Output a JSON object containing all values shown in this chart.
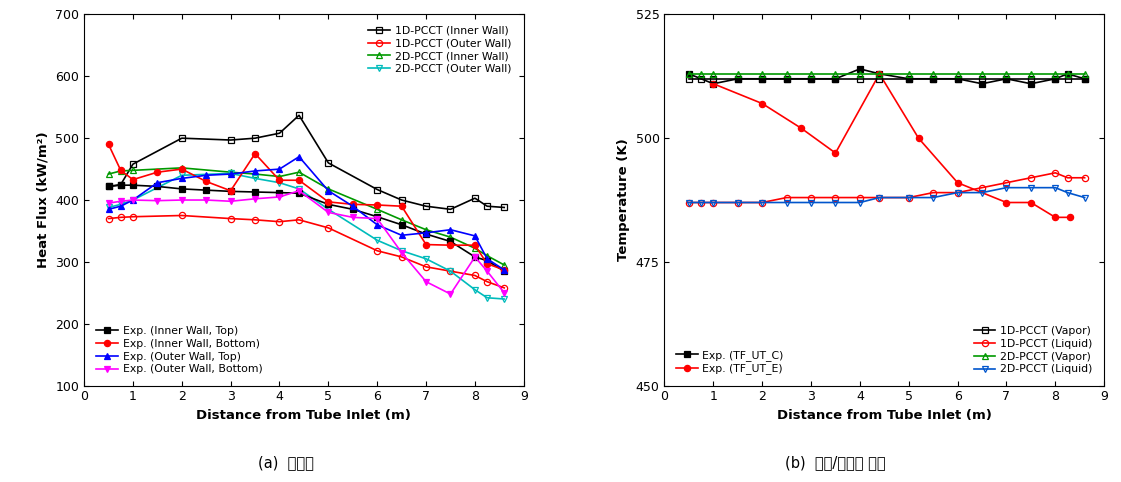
{
  "left": {
    "xlabel": "Distance from Tube Inlet (m)",
    "ylabel": "Heat Flux (kW/m²)",
    "xlim": [
      0,
      9
    ],
    "ylim": [
      100,
      700
    ],
    "yticks": [
      100,
      200,
      300,
      400,
      500,
      600,
      700
    ],
    "xticks": [
      0,
      1,
      2,
      3,
      4,
      5,
      6,
      7,
      8,
      9
    ],
    "pcct1d_inner": {
      "x": [
        0.5,
        0.75,
        1.0,
        2.0,
        3.0,
        3.5,
        4.0,
        4.4,
        5.0,
        6.0,
        6.5,
        7.0,
        7.5,
        8.0,
        8.25,
        8.6
      ],
      "y": [
        422,
        425,
        458,
        500,
        497,
        500,
        508,
        537,
        460,
        417,
        400,
        390,
        385,
        403,
        390,
        388
      ],
      "color": "#000000",
      "marker": "s",
      "label": "1D-PCCT (Inner Wall)"
    },
    "pcct1d_outer": {
      "x": [
        0.5,
        0.75,
        1.0,
        2.0,
        3.0,
        3.5,
        4.0,
        4.4,
        5.0,
        6.0,
        6.5,
        7.0,
        7.5,
        8.0,
        8.25,
        8.6
      ],
      "y": [
        370,
        372,
        373,
        375,
        370,
        368,
        365,
        368,
        355,
        318,
        308,
        292,
        285,
        278,
        268,
        258
      ],
      "color": "#ff0000",
      "marker": "o",
      "label": "1D-PCCT (Outer Wall)"
    },
    "pcct2d_inner": {
      "x": [
        0.5,
        0.75,
        1.0,
        2.0,
        3.0,
        3.5,
        4.0,
        4.4,
        5.0,
        6.0,
        6.5,
        7.0,
        7.5,
        8.0,
        8.25,
        8.6
      ],
      "y": [
        442,
        447,
        448,
        452,
        445,
        442,
        438,
        445,
        418,
        385,
        368,
        352,
        340,
        322,
        310,
        295
      ],
      "color": "#009900",
      "marker": "^",
      "label": "2D-PCCT (Inner Wall)"
    },
    "pcct2d_outer": {
      "x": [
        0.5,
        0.75,
        1.0,
        2.0,
        3.0,
        3.5,
        4.0,
        4.4,
        5.0,
        6.0,
        6.5,
        7.0,
        7.5,
        8.0,
        8.25,
        8.6
      ],
      "y": [
        388,
        393,
        400,
        440,
        443,
        435,
        428,
        418,
        385,
        335,
        318,
        305,
        285,
        255,
        242,
        240
      ],
      "color": "#00bbbb",
      "marker": "v",
      "label": "2D-PCCT (Outer Wall)"
    },
    "exp_inner_top": {
      "x": [
        0.5,
        0.75,
        1.0,
        1.5,
        2.0,
        2.5,
        3.0,
        3.5,
        4.0,
        4.4,
        5.0,
        5.5,
        6.0,
        6.5,
        7.0,
        7.5,
        8.0,
        8.25,
        8.6
      ],
      "y": [
        422,
        424,
        424,
        422,
        418,
        416,
        414,
        413,
        412,
        411,
        393,
        385,
        373,
        360,
        345,
        333,
        308,
        302,
        285
      ],
      "color": "#000000",
      "marker": "s",
      "label": "Exp. (Inner Wall, Top)"
    },
    "exp_inner_bottom": {
      "x": [
        0.5,
        0.75,
        1.0,
        1.5,
        2.0,
        2.5,
        3.0,
        3.5,
        4.0,
        4.4,
        5.0,
        5.5,
        6.0,
        6.5,
        7.0,
        7.5,
        8.0,
        8.25,
        8.6
      ],
      "y": [
        490,
        448,
        433,
        445,
        450,
        430,
        415,
        475,
        432,
        432,
        397,
        393,
        392,
        390,
        328,
        327,
        327,
        297,
        287
      ],
      "color": "#ff0000",
      "marker": "o",
      "label": "Exp. (Inner Wall, Bottom)"
    },
    "exp_outer_top": {
      "x": [
        0.5,
        0.75,
        1.0,
        1.5,
        2.0,
        2.5,
        3.0,
        3.5,
        4.0,
        4.4,
        5.0,
        5.5,
        6.0,
        6.5,
        7.0,
        7.5,
        8.0,
        8.25,
        8.6
      ],
      "y": [
        385,
        390,
        400,
        428,
        435,
        440,
        442,
        447,
        450,
        470,
        415,
        390,
        360,
        343,
        347,
        352,
        342,
        305,
        287
      ],
      "color": "#0000ff",
      "marker": "^",
      "label": "Exp. (Outer Wall, Top)"
    },
    "exp_outer_bottom": {
      "x": [
        0.5,
        0.75,
        1.0,
        1.5,
        2.0,
        2.5,
        3.0,
        3.5,
        4.0,
        4.4,
        5.0,
        5.5,
        6.0,
        6.5,
        7.0,
        7.5,
        8.0,
        8.25,
        8.6
      ],
      "y": [
        395,
        398,
        400,
        399,
        400,
        400,
        398,
        402,
        405,
        415,
        380,
        372,
        370,
        315,
        268,
        248,
        308,
        285,
        250
      ],
      "color": "#ff00ff",
      "marker": "v",
      "label": "Exp. (Outer Wall, Bottom)"
    }
  },
  "right": {
    "xlabel": "Distance from Tube Inlet (m)",
    "ylabel": "Temperature (K)",
    "xlim": [
      0,
      9
    ],
    "ylim": [
      450,
      525
    ],
    "yticks": [
      450,
      475,
      500,
      525
    ],
    "xticks": [
      0,
      1,
      2,
      3,
      4,
      5,
      6,
      7,
      8,
      9
    ],
    "exp_tf_c": {
      "x": [
        0.5,
        1.0,
        1.5,
        2.0,
        2.5,
        3.0,
        3.5,
        4.0,
        4.4,
        5.0,
        5.5,
        6.0,
        6.5,
        7.0,
        7.5,
        8.0,
        8.25,
        8.6
      ],
      "y": [
        513,
        511,
        512,
        512,
        512,
        512,
        512,
        514,
        513,
        512,
        512,
        512,
        511,
        512,
        511,
        512,
        513,
        512
      ],
      "color": "#000000",
      "marker": "s",
      "label": "Exp. (TF_UT_C)"
    },
    "exp_tf_e": {
      "x": [
        1.0,
        2.0,
        2.8,
        3.5,
        4.4,
        5.2,
        6.0,
        7.0,
        7.5,
        8.0,
        8.3
      ],
      "y": [
        511,
        507,
        502,
        497,
        513,
        500,
        491,
        487,
        487,
        484,
        484
      ],
      "color": "#ff0000",
      "marker": "o",
      "label": "Exp. (TF_UT_E)"
    },
    "pcct1d_vapor": {
      "x": [
        0.5,
        0.75,
        1.0,
        1.5,
        2.0,
        2.5,
        3.0,
        3.5,
        4.0,
        4.4,
        5.0,
        5.5,
        6.0,
        6.5,
        7.0,
        7.5,
        8.0,
        8.25,
        8.6
      ],
      "y": [
        512,
        512,
        512,
        512,
        512,
        512,
        512,
        512,
        512,
        512,
        512,
        512,
        512,
        512,
        512,
        512,
        512,
        512,
        512
      ],
      "color": "#000000",
      "marker": "s",
      "label": "1D-PCCT (Vapor)"
    },
    "pcct1d_liquid": {
      "x": [
        0.5,
        0.75,
        1.0,
        1.5,
        2.0,
        2.5,
        3.0,
        3.5,
        4.0,
        4.4,
        5.0,
        5.5,
        6.0,
        6.5,
        7.0,
        7.5,
        8.0,
        8.25,
        8.6
      ],
      "y": [
        487,
        487,
        487,
        487,
        487,
        488,
        488,
        488,
        488,
        488,
        488,
        489,
        489,
        490,
        491,
        492,
        493,
        492,
        492
      ],
      "color": "#ff0000",
      "marker": "o",
      "label": "1D-PCCT (Liquid)"
    },
    "pcct2d_vapor": {
      "x": [
        0.5,
        0.75,
        1.0,
        1.5,
        2.0,
        2.5,
        3.0,
        3.5,
        4.0,
        4.4,
        5.0,
        5.5,
        6.0,
        6.5,
        7.0,
        7.5,
        8.0,
        8.25,
        8.6
      ],
      "y": [
        513,
        513,
        513,
        513,
        513,
        513,
        513,
        513,
        513,
        513,
        513,
        513,
        513,
        513,
        513,
        513,
        513,
        513,
        513
      ],
      "color": "#009900",
      "marker": "^",
      "label": "2D-PCCT (Vapor)"
    },
    "pcct2d_liquid": {
      "x": [
        0.5,
        0.75,
        1.0,
        1.5,
        2.0,
        2.5,
        3.0,
        3.5,
        4.0,
        4.4,
        5.0,
        5.5,
        6.0,
        6.5,
        7.0,
        7.5,
        8.0,
        8.25,
        8.6
      ],
      "y": [
        487,
        487,
        487,
        487,
        487,
        487,
        487,
        487,
        487,
        488,
        488,
        488,
        489,
        489,
        490,
        490,
        490,
        489,
        488
      ],
      "color": "#0055cc",
      "marker": "v",
      "label": "2D-PCCT (Liquid)"
    }
  },
  "caption_left": "(a)  열유속",
  "caption_right": "(b)  증기/응축수 온도"
}
